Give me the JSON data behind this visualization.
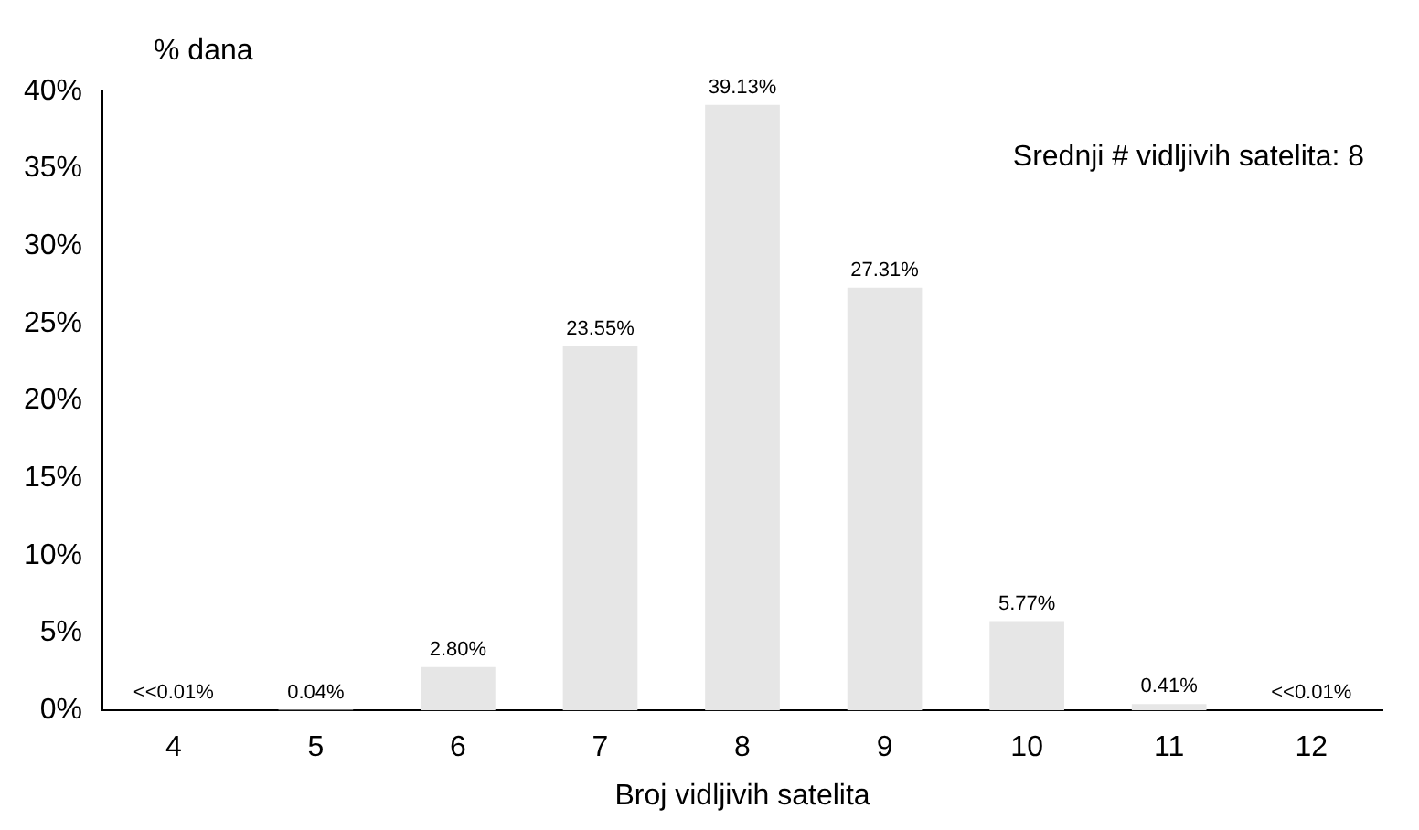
{
  "chart_data": {
    "type": "bar",
    "ylabel": "% dana",
    "xlabel": "Broj vidljivih satelita",
    "categories": [
      "4",
      "5",
      "6",
      "7",
      "8",
      "9",
      "10",
      "11",
      "12"
    ],
    "values": [
      0,
      0.04,
      2.8,
      23.55,
      39.13,
      27.31,
      5.77,
      0.41,
      0
    ],
    "value_labels": [
      "<<0.01%",
      "0.04%",
      "2.80%",
      "23.55%",
      "39.13%",
      "27.31%",
      "5.77%",
      "0.41%",
      "<<0.01%"
    ],
    "color": "#e6e6e6",
    "ylim": [
      0,
      40
    ],
    "yticks": [
      {
        "value": 0,
        "label": "0%"
      },
      {
        "value": 5,
        "label": "5%"
      },
      {
        "value": 10,
        "label": "10%"
      },
      {
        "value": 15,
        "label": "15%"
      },
      {
        "value": 20,
        "label": "20%"
      },
      {
        "value": 25,
        "label": "25%"
      },
      {
        "value": 30,
        "label": "30%"
      },
      {
        "value": 35,
        "label": "35%"
      },
      {
        "value": 40,
        "label": "40%"
      }
    ],
    "annotations": [
      "Srednji # vidljivih satelita: 8"
    ],
    "grid": false,
    "legend": false
  }
}
